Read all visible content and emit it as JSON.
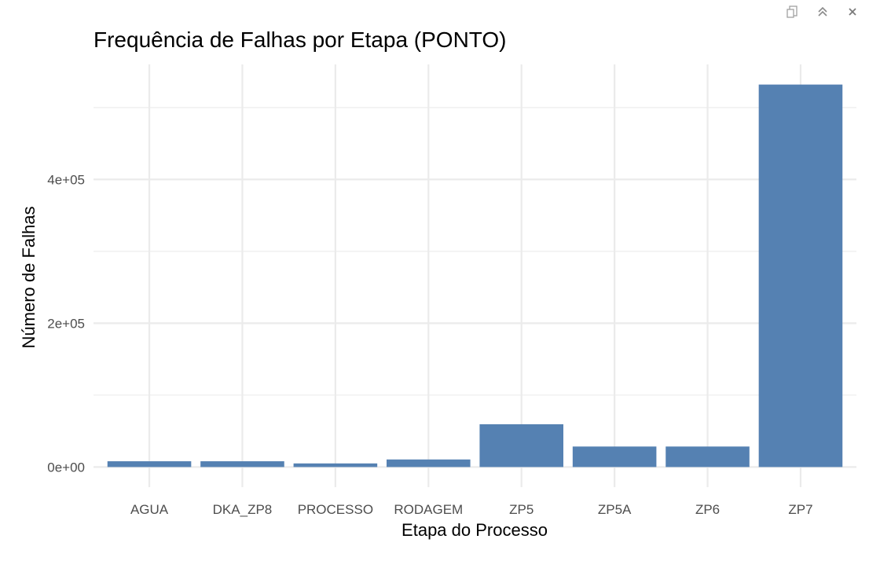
{
  "toolbar": {
    "icons": [
      "export-icon",
      "collapse-icon",
      "close-icon"
    ]
  },
  "colors": {
    "bar": "#5581B2",
    "grid": "#EBEBEB"
  },
  "chart_data": {
    "type": "bar",
    "title": "Frequência de Falhas por Etapa (PONTO)",
    "xlabel": "Etapa do Processo",
    "ylabel": "Número de Falhas",
    "categories": [
      "AGUA",
      "DKA_ZP8",
      "PROCESSO",
      "RODAGEM",
      "ZP5",
      "ZP5A",
      "ZP6",
      "ZP7"
    ],
    "values": [
      8000,
      8000,
      5000,
      10500,
      59500,
      28500,
      28500,
      532000
    ],
    "ylim": [
      -28000,
      560000
    ],
    "y_ticks": [
      0,
      200000,
      400000
    ],
    "y_tick_labels": [
      "0e+00",
      "2e+05",
      "4e+05"
    ],
    "grid": true,
    "legend": "none"
  }
}
